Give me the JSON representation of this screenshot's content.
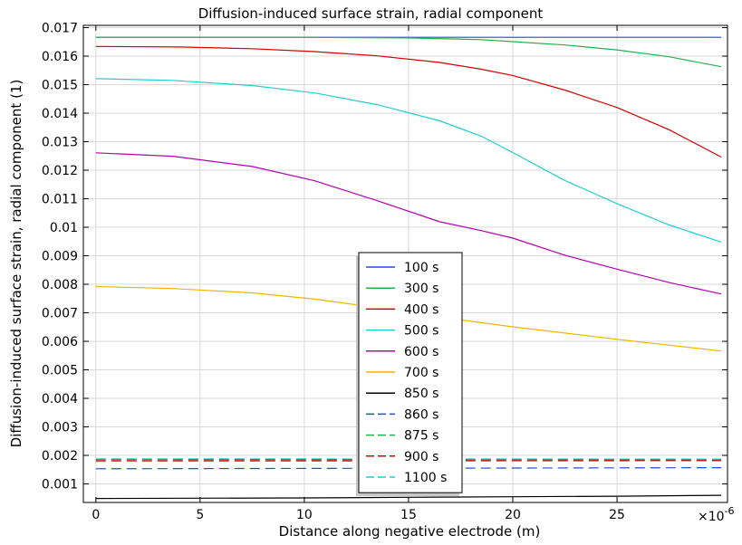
{
  "chart_data": {
    "type": "line",
    "title": "Diffusion-induced surface strain, radial component",
    "xlabel": "Distance along negative electrode (m)",
    "ylabel": "Diffusion-induced surface strain, radial component (1)",
    "x_multiplier_label": "×10",
    "x_multiplier_exponent": "-6",
    "xlim": [
      -0.6,
      30.3
    ],
    "ylim": [
      0.00035,
      0.01708
    ],
    "x_ticks": [
      0,
      5,
      10,
      15,
      20,
      25
    ],
    "x_tick_labels": [
      "0",
      "5",
      "10",
      "15",
      "20",
      "25"
    ],
    "y_ticks": [
      0.001,
      0.002,
      0.003,
      0.004,
      0.005,
      0.006,
      0.007,
      0.008,
      0.009,
      0.01,
      0.011,
      0.012,
      0.013,
      0.014,
      0.015,
      0.016,
      0.017
    ],
    "y_tick_labels": [
      "0.001",
      "0.002",
      "0.003",
      "0.004",
      "0.005",
      "0.006",
      "0.007",
      "0.008",
      "0.009",
      "0.01",
      "0.011",
      "0.012",
      "0.013",
      "0.014",
      "0.015",
      "0.016",
      "0.017"
    ],
    "grid": true,
    "legend_position": "center-bottom",
    "series": [
      {
        "name": "100 s",
        "color": "#1f4fd8",
        "dash": "solid",
        "x": [
          0,
          10,
          15,
          20,
          25,
          30
        ],
        "y": [
          0.01666,
          0.01666,
          0.01666,
          0.01666,
          0.01666,
          0.01666
        ]
      },
      {
        "name": "300 s",
        "color": "#22b14c",
        "dash": "solid",
        "x": [
          0,
          5,
          10,
          15,
          18.5,
          20,
          22.5,
          25,
          27.5,
          30
        ],
        "y": [
          0.01666,
          0.01666,
          0.01666,
          0.01664,
          0.01658,
          0.01651,
          0.01639,
          0.01622,
          0.01598,
          0.01563
        ]
      },
      {
        "name": "400 s",
        "color": "#d40000",
        "dash": "solid",
        "x": [
          0,
          4,
          7.5,
          10.5,
          13.5,
          16.5,
          18.5,
          20,
          22.5,
          25,
          27.5,
          30
        ],
        "y": [
          0.01634,
          0.01632,
          0.01626,
          0.01616,
          0.01601,
          0.01578,
          0.01554,
          0.01532,
          0.01481,
          0.0142,
          0.01342,
          0.01246
        ]
      },
      {
        "name": "500 s",
        "color": "#1fcfcf",
        "dash": "solid",
        "x": [
          0,
          3.7,
          7.5,
          10.5,
          13.5,
          16.5,
          18.5,
          20,
          22.5,
          25,
          27.5,
          30
        ],
        "y": [
          0.01521,
          0.01515,
          0.01497,
          0.01471,
          0.0143,
          0.01373,
          0.01319,
          0.01262,
          0.01164,
          0.01083,
          0.01008,
          0.00948
        ]
      },
      {
        "name": "600 s",
        "color": "#b400b4",
        "dash": "solid",
        "x": [
          0,
          3.7,
          7.5,
          10.5,
          13.5,
          16.5,
          18.5,
          20,
          22.5,
          25,
          27.5,
          30
        ],
        "y": [
          0.01261,
          0.01249,
          0.01213,
          0.01163,
          0.01093,
          0.01019,
          0.00988,
          0.00962,
          0.00902,
          0.00853,
          0.00806,
          0.00766
        ]
      },
      {
        "name": "700 s",
        "color": "#f5b400",
        "dash": "solid",
        "x": [
          0,
          3.7,
          7.5,
          10.5,
          13.5,
          16.5,
          20,
          25,
          30
        ],
        "y": [
          0.00792,
          0.00785,
          0.0077,
          0.00748,
          0.00718,
          0.00685,
          0.00651,
          0.00607,
          0.00566
        ]
      },
      {
        "name": "850 s",
        "color": "#000000",
        "dash": "solid",
        "x": [
          0,
          10,
          15,
          20,
          25,
          30
        ],
        "y": [
          0.00049,
          0.00051,
          0.00053,
          0.00055,
          0.00057,
          0.0006
        ]
      },
      {
        "name": "860 s",
        "color": "#1f4fd8",
        "dash": "dashed",
        "x": [
          0,
          30
        ],
        "y": [
          0.00153,
          0.00157
        ]
      },
      {
        "name": "875 s",
        "color": "#22b14c",
        "dash": "dashed",
        "x": [
          0,
          30
        ],
        "y": [
          0.00179,
          0.00181
        ]
      },
      {
        "name": "900 s",
        "color": "#d40000",
        "dash": "dashed",
        "x": [
          0,
          30
        ],
        "y": [
          0.00184,
          0.00184
        ]
      },
      {
        "name": "1100 s",
        "color": "#1fcfcf",
        "dash": "dashed",
        "x": [
          0,
          30
        ],
        "y": [
          0.00188,
          0.00187
        ]
      }
    ]
  }
}
